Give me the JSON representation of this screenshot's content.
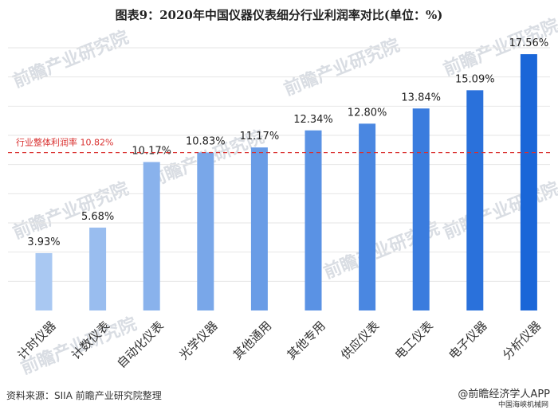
{
  "title": "图表9：2020年中国仪器仪表细分行业利润率对比(单位：%)",
  "source": "资料来源：SIIA 前瞻产业研究院整理",
  "brand": "@前瞻经济学人APP",
  "brand_sub": "中国海峡机械网",
  "watermark_text": "前瞻产业研究院",
  "colors": {
    "bar_light": "#a9c8f2",
    "bar_dark": "#1a66d8",
    "reference_line": "#d9302f",
    "grid": "#e6e6e6"
  },
  "chart_data": {
    "type": "bar",
    "categories": [
      "计时仪器",
      "计数仪表",
      "自动化仪表",
      "光学仪器",
      "其他通用",
      "其他专用",
      "供应仪表",
      "电工仪表",
      "电子仪器",
      "分析仪器"
    ],
    "values": [
      3.93,
      5.68,
      10.17,
      10.83,
      11.17,
      12.34,
      12.8,
      13.84,
      15.09,
      17.56
    ],
    "value_labels": [
      "3.93%",
      "5.68%",
      "10.17%",
      "10.83%",
      "11.17%",
      "12.34%",
      "12.80%",
      "13.84%",
      "15.09%",
      "17.56%"
    ],
    "reference": {
      "value": 10.82,
      "label": "行业整体利润率 10.82%"
    },
    "ylim": [
      0,
      18
    ],
    "grid": true
  }
}
